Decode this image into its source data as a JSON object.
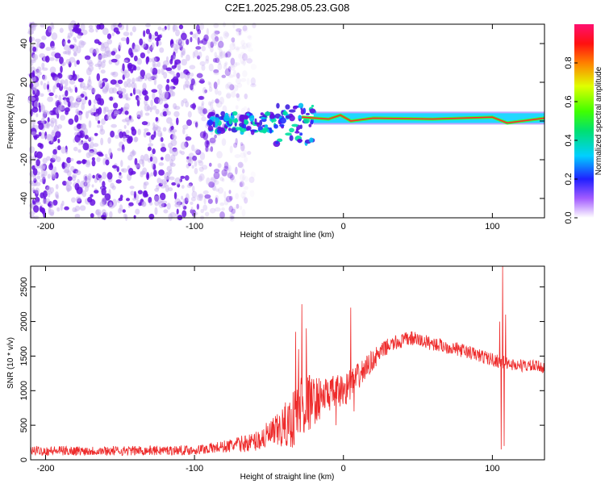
{
  "figure_title": "C2E1.2025.298.05.23.G08",
  "colors": {
    "snr_line": "#ee2b2b",
    "scatter_low": "#c8b0f0",
    "scatter_high": "#6610e0",
    "axis": "#000000"
  },
  "chart_data": [
    {
      "type": "heatmap",
      "title": "C2E1.2025.298.05.23.G08",
      "xlabel": "Height of straight line (km)",
      "ylabel": "Frequency (Hz)",
      "xlim": [
        -210,
        135
      ],
      "ylim": [
        -50,
        50
      ],
      "xticks": [
        -200,
        -100,
        0,
        100
      ],
      "yticks": [
        -40,
        -20,
        0,
        20,
        40
      ],
      "xtick_labels": [
        "-200",
        "-100",
        "0",
        "100"
      ],
      "ytick_labels": [
        "-40",
        "-20",
        "0",
        "20",
        "40"
      ],
      "colorbar": {
        "label": "Normalized spectral amplitude",
        "range": [
          0,
          1
        ],
        "ticks": [
          0.0,
          0.2,
          0.4,
          0.6,
          0.8
        ],
        "tick_labels": [
          "0.0",
          "0.2",
          "0.4",
          "0.6",
          "0.8"
        ]
      },
      "regions": [
        {
          "name": "noise",
          "x_range": [
            -210,
            -60
          ],
          "freq_range": [
            -50,
            50
          ],
          "amplitude": 0.1
        },
        {
          "name": "transition",
          "x_range": [
            -90,
            -20
          ],
          "freq_range": [
            -12,
            8
          ],
          "amplitude": 0.35
        },
        {
          "name": "carrier",
          "x_range": [
            -20,
            135
          ],
          "freq_center": 1.5,
          "half_width": 2.5,
          "amplitude": 0.9
        }
      ],
      "carrier_trace": [
        {
          "x": -28,
          "f": 2
        },
        {
          "x": -10,
          "f": 1
        },
        {
          "x": -2,
          "f": 3
        },
        {
          "x": 5,
          "f": 0
        },
        {
          "x": 20,
          "f": 1.5
        },
        {
          "x": 60,
          "f": 1
        },
        {
          "x": 100,
          "f": 2
        },
        {
          "x": 110,
          "f": -1
        },
        {
          "x": 135,
          "f": 1.5
        }
      ]
    },
    {
      "type": "line",
      "title": "",
      "xlabel": "Height of straight line (km)",
      "ylabel": "SNR (10 * v/v)",
      "xlim": [
        -210,
        135
      ],
      "ylim": [
        0,
        2800
      ],
      "xticks": [
        -200,
        -100,
        0,
        100
      ],
      "yticks": [
        0,
        500,
        1000,
        1500,
        2000,
        2500
      ],
      "xtick_labels": [
        "-200",
        "-100",
        "0",
        "100"
      ],
      "ytick_labels": [
        "0",
        "500",
        "1000",
        "1500",
        "2000",
        "2500"
      ],
      "series": [
        {
          "name": "SNR",
          "envelope": [
            {
              "x": -210,
              "base": 130,
              "amp": 70
            },
            {
              "x": -150,
              "base": 130,
              "amp": 70
            },
            {
              "x": -100,
              "base": 140,
              "amp": 70
            },
            {
              "x": -80,
              "base": 190,
              "amp": 90
            },
            {
              "x": -60,
              "base": 260,
              "amp": 140
            },
            {
              "x": -45,
              "base": 400,
              "amp": 250
            },
            {
              "x": -35,
              "base": 550,
              "amp": 400
            },
            {
              "x": -28,
              "base": 800,
              "amp": 550
            },
            {
              "x": -20,
              "base": 850,
              "amp": 350
            },
            {
              "x": -10,
              "base": 950,
              "amp": 250
            },
            {
              "x": 0,
              "base": 1000,
              "amp": 250
            },
            {
              "x": 10,
              "base": 1200,
              "amp": 200
            },
            {
              "x": 20,
              "base": 1450,
              "amp": 150
            },
            {
              "x": 30,
              "base": 1650,
              "amp": 110
            },
            {
              "x": 45,
              "base": 1760,
              "amp": 110
            },
            {
              "x": 60,
              "base": 1680,
              "amp": 100
            },
            {
              "x": 80,
              "base": 1580,
              "amp": 100
            },
            {
              "x": 100,
              "base": 1450,
              "amp": 100
            },
            {
              "x": 115,
              "base": 1370,
              "amp": 90
            },
            {
              "x": 135,
              "base": 1340,
              "amp": 90
            }
          ],
          "spikes": [
            {
              "x": -32,
              "y": 1850
            },
            {
              "x": -30,
              "y": 1600
            },
            {
              "x": -28,
              "y": 2250
            },
            {
              "x": -25,
              "y": 1900
            },
            {
              "x": 5,
              "y": 2200
            },
            {
              "x": 7,
              "y": 700
            },
            {
              "x": -5,
              "y": 500
            },
            {
              "x": 105,
              "y": 2000
            },
            {
              "x": 106,
              "y": 150
            },
            {
              "x": 107,
              "y": 2800
            },
            {
              "x": 108,
              "y": 200
            },
            {
              "x": 109,
              "y": 2100
            }
          ]
        }
      ]
    }
  ]
}
